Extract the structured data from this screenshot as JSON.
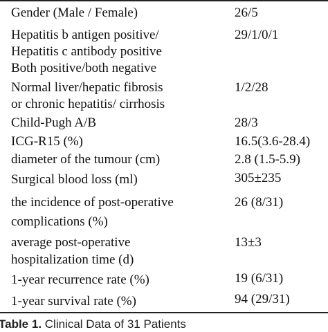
{
  "table": {
    "rows": [
      {
        "label_lines": [
          "Gender (Male / Female)"
        ],
        "value": "26/5"
      },
      {
        "label_lines": [
          "Hepatitis b antigen positive/",
          "Hepatitis c antibody positive",
          "Both positive/both negative"
        ],
        "value": "29/1/0/1"
      },
      {
        "label_lines": [
          "Normal liver/hepatic fibrosis",
          "or chronic hepatitis/ cirrhosis"
        ],
        "value": "1/2/28"
      },
      {
        "label_lines": [
          "Child-Pugh A/B"
        ],
        "value": "28/3"
      },
      {
        "label_lines": [
          "ICG-R15 (%)"
        ],
        "value": "16.5(3.6-28.4)"
      },
      {
        "label_lines": [
          "diameter of the tumour (cm)"
        ],
        "value": "2.8 (1.5-5.9)"
      },
      {
        "label_lines": [
          "Surgical blood loss (ml)"
        ],
        "value": "305±235"
      },
      {
        "label_lines": [
          "the incidence of post-operative",
          "complications (%)"
        ],
        "value": "26 (8/31)"
      },
      {
        "label_lines": [
          "average post-operative",
          "hospitalization time (d)"
        ],
        "value": "13±3"
      },
      {
        "label_lines": [
          "1-year recurrence rate (%)"
        ],
        "value": "19 (6/31)"
      },
      {
        "label_lines": [
          "1-year survival rate (%)"
        ],
        "value": "94 (29/31)"
      }
    ]
  },
  "caption": {
    "label": "Table 1.",
    "text": " Clinical Data of 31 Patients"
  }
}
